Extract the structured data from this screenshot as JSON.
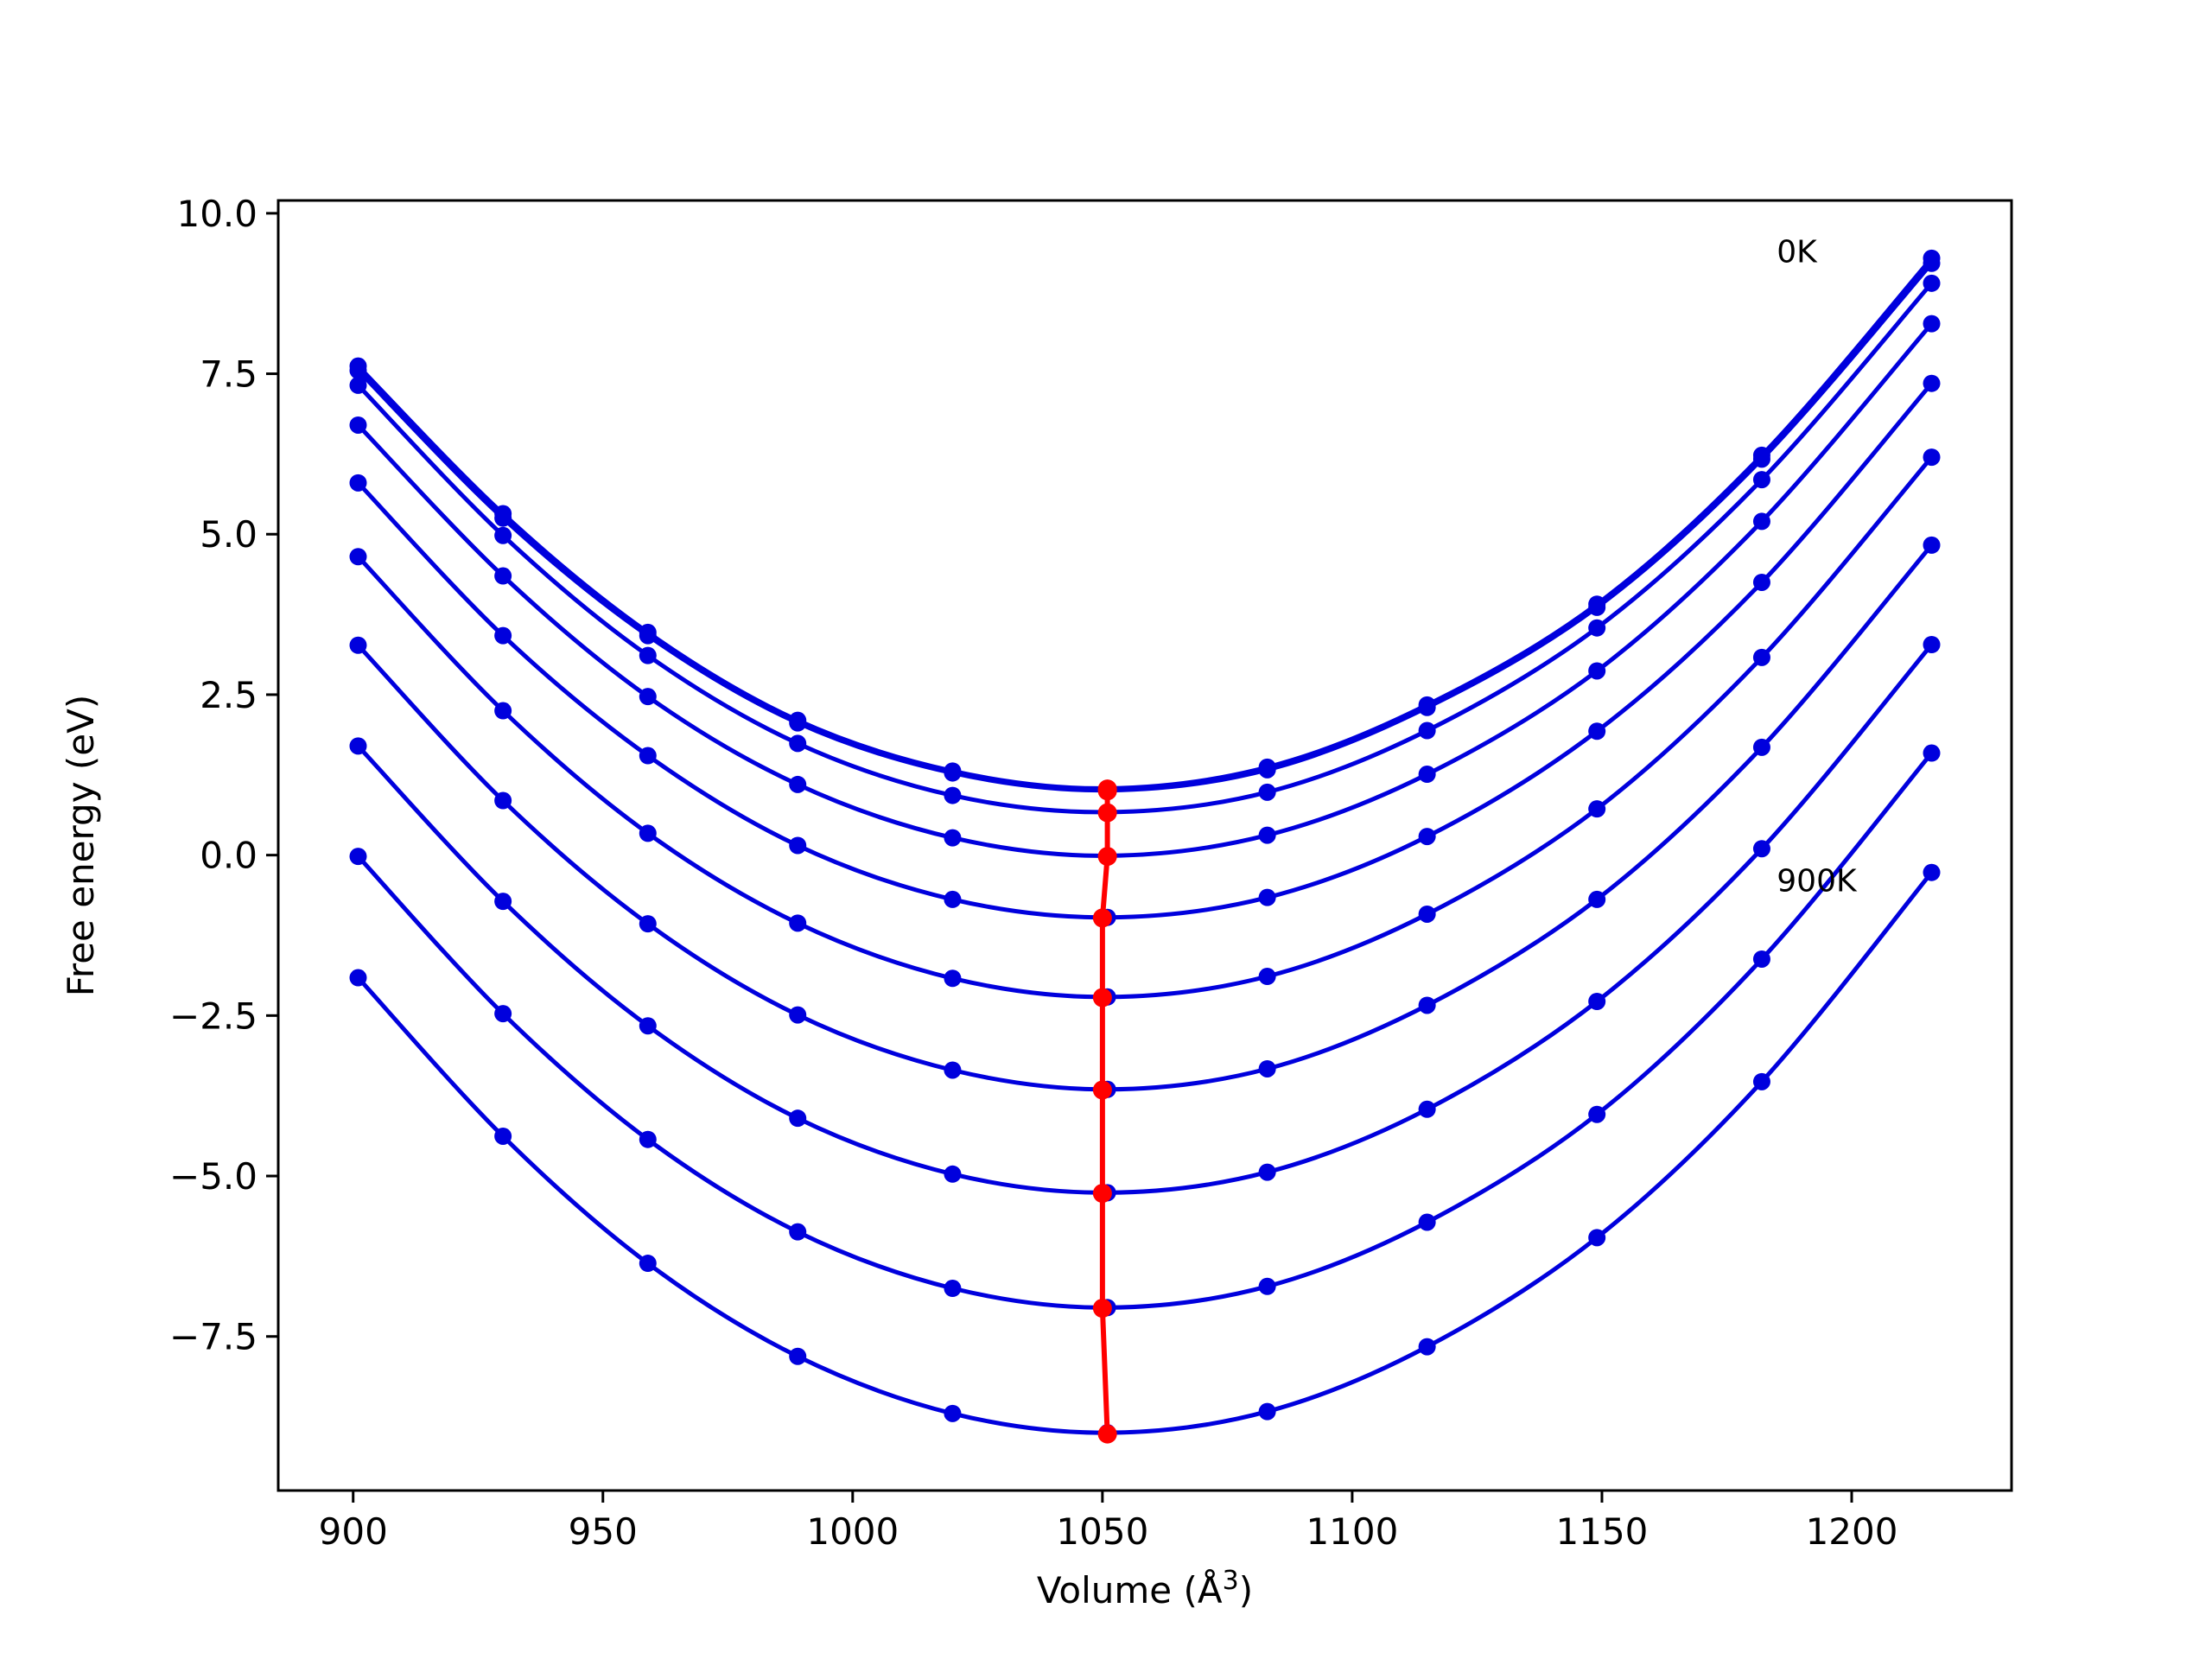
{
  "chart_data": {
    "type": "line",
    "title": "",
    "xlabel": "Volume (Å",
    "xlabel_sup": "3",
    "xlabel_close": ")",
    "ylabel": "Free energy (eV)",
    "xlim": [
      885,
      1232
    ],
    "ylim": [
      -9.9,
      10.2
    ],
    "xticks": [
      900,
      950,
      1000,
      1050,
      1100,
      1150,
      1200
    ],
    "yticks": [
      10.0,
      7.5,
      5.0,
      2.5,
      0.0,
      -2.5,
      -5.0,
      -7.5
    ],
    "ytick_labels": [
      "10.0",
      "7.5",
      "5.0",
      "2.5",
      "0.0",
      "−2.5",
      "−5.0",
      "−7.5"
    ],
    "grid": false,
    "legend": "none",
    "colors": {
      "curves": "#0000dd",
      "minima": "#ff0000"
    },
    "annotations": [
      {
        "text": "0K",
        "x": 1185,
        "y": 9.4
      },
      {
        "text": "900K",
        "x": 1185,
        "y": -0.4
      }
    ],
    "x": [
      901,
      930,
      959,
      989,
      1020,
      1051,
      1083,
      1115,
      1149,
      1182,
      1216
    ],
    "series": [
      {
        "values": [
          7.62,
          5.32,
          3.47,
          2.1,
          1.31,
          1.04,
          1.37,
          2.34,
          3.91,
          6.23,
          9.3
        ],
        "min": [
          1051,
          1.03
        ]
      },
      {
        "values": [
          7.55,
          5.25,
          3.42,
          2.06,
          1.28,
          1.01,
          1.33,
          2.3,
          3.86,
          6.17,
          9.22
        ],
        "min": [
          1051,
          1.0
        ]
      },
      {
        "values": [
          7.32,
          4.98,
          3.11,
          1.74,
          0.93,
          0.67,
          0.98,
          1.94,
          3.54,
          5.85,
          8.91
        ],
        "min": [
          1051,
          0.66
        ]
      },
      {
        "values": [
          6.7,
          4.35,
          2.47,
          1.1,
          0.27,
          -0.01,
          0.31,
          1.26,
          2.87,
          5.2,
          8.28
        ],
        "min": [
          1051,
          -0.02
        ]
      },
      {
        "values": [
          5.8,
          3.42,
          1.55,
          0.15,
          -0.69,
          -0.97,
          -0.66,
          0.29,
          1.93,
          4.25,
          7.35
        ],
        "min": [
          1050,
          -0.98
        ]
      },
      {
        "values": [
          4.65,
          2.25,
          0.34,
          -1.06,
          -1.92,
          -2.21,
          -1.89,
          -0.92,
          0.72,
          3.08,
          6.2
        ],
        "min": [
          1050,
          -2.22
        ]
      },
      {
        "values": [
          3.27,
          0.85,
          -1.07,
          -2.49,
          -3.35,
          -3.65,
          -3.33,
          -2.34,
          -0.69,
          1.68,
          4.83
        ],
        "min": [
          1050,
          -3.66
        ]
      },
      {
        "values": [
          1.7,
          -0.72,
          -2.66,
          -4.1,
          -4.97,
          -5.26,
          -4.94,
          -3.96,
          -2.28,
          0.1,
          3.28
        ],
        "min": [
          1050,
          -5.27
        ]
      },
      {
        "values": [
          -0.02,
          -2.47,
          -4.43,
          -5.87,
          -6.75,
          -7.05,
          -6.72,
          -5.72,
          -4.04,
          -1.62,
          1.59
        ],
        "min": [
          1050,
          -7.06
        ]
      },
      {
        "values": [
          -1.91,
          -4.38,
          -6.36,
          -7.81,
          -8.7,
          -9.0,
          -8.67,
          -7.66,
          -5.96,
          -3.53,
          -0.27
        ],
        "min": [
          1051,
          -9.02
        ]
      }
    ]
  }
}
